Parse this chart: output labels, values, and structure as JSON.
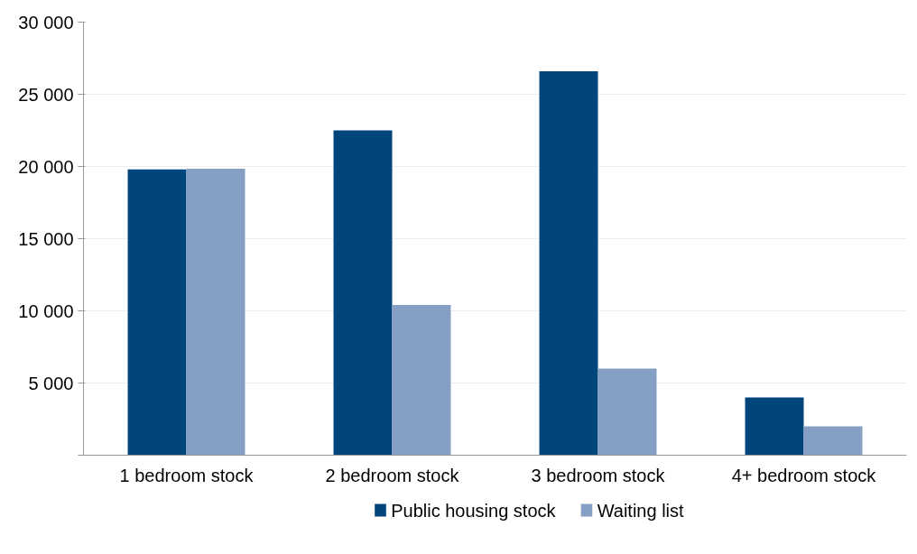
{
  "chart_data": {
    "type": "bar",
    "categories": [
      "1 bedroom stock",
      "2 bedroom stock",
      "3 bedroom stock",
      "4+ bedroom stock"
    ],
    "series": [
      {
        "name": "Public housing stock",
        "color": "#00457c",
        "values": [
          19800,
          22500,
          26600,
          4000
        ]
      },
      {
        "name": "Waiting list",
        "color": "#85a0c4",
        "values": [
          19850,
          10400,
          6000,
          2000
        ]
      }
    ],
    "ylim": [
      0,
      30000
    ],
    "yticks": [
      {
        "value": 0,
        "label": null
      },
      {
        "value": 5000,
        "label": "5 000"
      },
      {
        "value": 10000,
        "label": "10 000"
      },
      {
        "value": 15000,
        "label": "15 000"
      },
      {
        "value": 20000,
        "label": "20 000"
      },
      {
        "value": 25000,
        "label": "25 000"
      },
      {
        "value": 30000,
        "label": "30 000"
      }
    ],
    "grid": "y",
    "legend": "bottom"
  }
}
